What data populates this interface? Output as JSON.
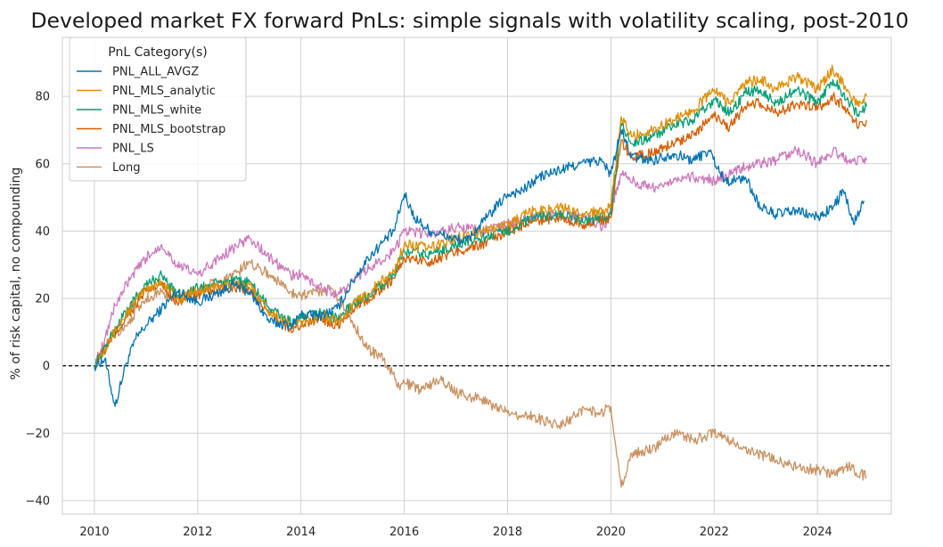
{
  "chart_data": {
    "type": "line",
    "title": "Developed market FX forward PnLs: simple signals with volatility scaling, post-2010",
    "xlabel": "",
    "ylabel": "% of risk capital, no compounding",
    "xlim": [
      2009.38,
      2025.43
    ],
    "ylim": [
      -44,
      97.5
    ],
    "x_ticks": [
      2010,
      2012,
      2014,
      2016,
      2018,
      2020,
      2022,
      2024
    ],
    "y_ticks": [
      -40,
      -20,
      0,
      20,
      40,
      60,
      80
    ],
    "grid": true,
    "zero_line": {
      "y": 0,
      "style": "dashed",
      "color": "#000000"
    },
    "legend": {
      "title": "PnL Category(s)",
      "placement": "top-left"
    },
    "series": [
      {
        "name": "PNL_ALL_AVGZ",
        "color": "#0173b2",
        "x": [
          2010.0,
          2010.2,
          2010.4,
          2010.6,
          2010.8,
          2011.0,
          2011.3,
          2011.6,
          2012.0,
          2012.3,
          2012.7,
          2013.0,
          2013.4,
          2013.8,
          2014.0,
          2014.4,
          2014.7,
          2015.0,
          2015.3,
          2015.6,
          2015.8,
          2016.0,
          2016.2,
          2016.5,
          2016.9,
          2017.2,
          2017.6,
          2018.0,
          2018.3,
          2018.6,
          2019.0,
          2019.4,
          2019.8,
          2020.0,
          2020.2,
          2020.4,
          2020.8,
          2021.2,
          2021.6,
          2021.9,
          2022.2,
          2022.4,
          2022.6,
          2022.9,
          2023.2,
          2023.6,
          2024.0,
          2024.3,
          2024.5,
          2024.7,
          2024.9
        ],
        "y": [
          0,
          2,
          -12,
          0,
          8,
          12,
          17,
          22,
          19,
          21,
          24,
          22,
          13,
          12,
          15,
          15,
          17,
          25,
          32,
          37,
          40,
          51,
          44,
          40,
          38,
          37,
          44,
          51,
          52,
          56,
          58,
          60,
          61,
          57,
          70,
          62,
          61,
          63,
          61,
          64,
          55,
          55,
          56,
          47,
          45,
          46,
          44,
          47,
          52,
          42,
          49
        ]
      },
      {
        "name": "PNL_MLS_analytic",
        "color": "#de8f05",
        "x": [
          2010.0,
          2010.3,
          2010.6,
          2011.0,
          2011.3,
          2011.6,
          2012.0,
          2012.5,
          2013.0,
          2013.4,
          2013.8,
          2014.0,
          2014.4,
          2014.7,
          2015.0,
          2015.4,
          2015.8,
          2016.0,
          2016.5,
          2017.0,
          2017.5,
          2018.0,
          2018.5,
          2019.0,
          2019.5,
          2020.0,
          2020.2,
          2020.4,
          2020.8,
          2021.2,
          2021.6,
          2022.0,
          2022.3,
          2022.6,
          2022.9,
          2023.2,
          2023.6,
          2024.0,
          2024.3,
          2024.5,
          2024.8,
          2024.95
        ],
        "y": [
          0,
          8,
          15,
          23,
          25,
          20,
          22,
          24,
          24,
          16,
          12,
          13,
          15,
          13,
          18,
          23,
          28,
          36,
          35,
          38,
          40,
          42,
          46,
          47,
          45,
          47,
          74,
          68,
          70,
          73,
          76,
          82,
          78,
          84,
          85,
          82,
          86,
          82,
          88,
          84,
          77,
          80
        ]
      },
      {
        "name": "PNL_MLS_white",
        "color": "#029e73",
        "x": [
          2010.0,
          2010.3,
          2010.6,
          2011.0,
          2011.3,
          2011.6,
          2012.0,
          2012.5,
          2013.0,
          2013.4,
          2013.8,
          2014.0,
          2014.4,
          2014.7,
          2015.0,
          2015.4,
          2015.8,
          2016.0,
          2016.5,
          2017.0,
          2017.5,
          2018.0,
          2018.5,
          2019.0,
          2019.5,
          2020.0,
          2020.2,
          2020.4,
          2020.8,
          2021.2,
          2021.6,
          2022.0,
          2022.3,
          2022.6,
          2022.9,
          2023.2,
          2023.6,
          2024.0,
          2024.3,
          2024.5,
          2024.8,
          2024.95
        ],
        "y": [
          0,
          8,
          16,
          24,
          27,
          21,
          23,
          25,
          25,
          17,
          13,
          14,
          16,
          14,
          18,
          22,
          27,
          34,
          33,
          36,
          38,
          40,
          44,
          45,
          43,
          45,
          72,
          66,
          68,
          71,
          73,
          79,
          75,
          81,
          82,
          78,
          82,
          78,
          85,
          81,
          74,
          77
        ]
      },
      {
        "name": "PNL_MLS_bootstrap",
        "color": "#d55e00",
        "x": [
          2010.0,
          2010.3,
          2010.6,
          2011.0,
          2011.3,
          2011.6,
          2012.0,
          2012.5,
          2013.0,
          2013.4,
          2013.8,
          2014.0,
          2014.4,
          2014.7,
          2015.0,
          2015.4,
          2015.8,
          2016.0,
          2016.5,
          2017.0,
          2017.5,
          2018.0,
          2018.5,
          2019.0,
          2019.5,
          2020.0,
          2020.2,
          2020.4,
          2020.8,
          2021.2,
          2021.6,
          2022.0,
          2022.3,
          2022.6,
          2022.9,
          2023.2,
          2023.6,
          2024.0,
          2024.3,
          2024.5,
          2024.8,
          2024.95
        ],
        "y": [
          0,
          7,
          14,
          22,
          24,
          19,
          21,
          23,
          23,
          15,
          11,
          12,
          14,
          12,
          17,
          21,
          26,
          32,
          31,
          34,
          36,
          40,
          43,
          44,
          42,
          44,
          67,
          62,
          63,
          66,
          69,
          74,
          71,
          77,
          78,
          75,
          78,
          76,
          80,
          77,
          71,
          73
        ]
      },
      {
        "name": "PNL_LS",
        "color": "#cc78bc",
        "x": [
          2010.0,
          2010.2,
          2010.4,
          2010.7,
          2011.0,
          2011.3,
          2011.6,
          2012.0,
          2012.5,
          2013.0,
          2013.4,
          2013.8,
          2014.0,
          2014.4,
          2014.7,
          2015.0,
          2015.4,
          2015.8,
          2016.0,
          2016.5,
          2017.0,
          2017.5,
          2018.0,
          2018.5,
          2019.0,
          2019.5,
          2019.9,
          2020.2,
          2020.5,
          2020.9,
          2021.3,
          2021.7,
          2022.0,
          2022.4,
          2022.8,
          2023.2,
          2023.6,
          2024.0,
          2024.3,
          2024.6,
          2024.95
        ],
        "y": [
          0,
          8,
          18,
          26,
          32,
          36,
          30,
          27,
          33,
          38,
          32,
          27,
          27,
          23,
          21,
          25,
          30,
          34,
          40,
          39,
          41,
          40,
          42,
          44,
          45,
          44,
          41,
          57,
          54,
          53,
          56,
          56,
          55,
          58,
          60,
          61,
          64,
          60,
          64,
          61,
          61
        ]
      },
      {
        "name": "Long",
        "color": "#ca9161",
        "x": [
          2010.0,
          2010.3,
          2010.6,
          2011.0,
          2011.3,
          2011.6,
          2012.0,
          2012.4,
          2012.8,
          2013.0,
          2013.4,
          2013.8,
          2014.0,
          2014.3,
          2014.6,
          2015.0,
          2015.3,
          2015.6,
          2015.9,
          2016.0,
          2016.3,
          2016.7,
          2017.0,
          2017.5,
          2018.0,
          2018.5,
          2019.0,
          2019.5,
          2019.8,
          2020.0,
          2020.2,
          2020.4,
          2020.8,
          2021.2,
          2021.6,
          2022.0,
          2022.4,
          2022.8,
          2023.2,
          2023.6,
          2024.0,
          2024.3,
          2024.6,
          2024.95
        ],
        "y": [
          0,
          8,
          12,
          20,
          22,
          20,
          23,
          25,
          28,
          31,
          27,
          22,
          21,
          22,
          23,
          13,
          5,
          2,
          -6,
          -5,
          -7,
          -4,
          -8,
          -10,
          -14,
          -15,
          -18,
          -13,
          -14,
          -12,
          -36,
          -26,
          -25,
          -20,
          -22,
          -20,
          -23,
          -26,
          -28,
          -30,
          -31,
          -32,
          -30,
          -33
        ]
      }
    ]
  }
}
